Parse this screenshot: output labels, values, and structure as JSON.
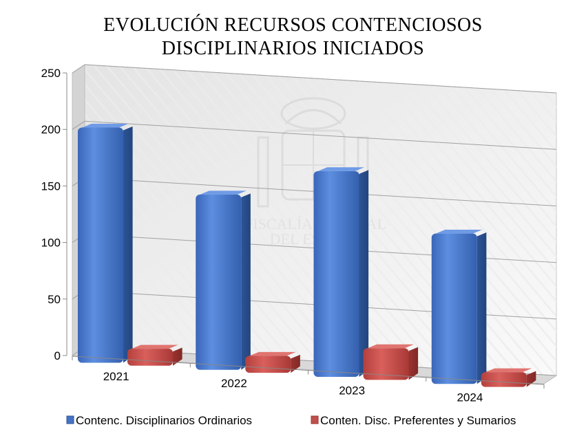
{
  "chart_data": {
    "type": "bar",
    "title_lines": [
      "EVOLUCIÓN RECURSOS CONTENCIOSOS",
      "DISCIPLINARIOS INICIADOS"
    ],
    "categories": [
      "2021",
      "2022",
      "2023",
      "2024"
    ],
    "series": [
      {
        "name": "Contenc. Disciplinarios Ordinarios",
        "values": [
          208,
          155,
          182,
          133
        ],
        "color": "#4472c4"
      },
      {
        "name": "Conten. Disc. Preferentes y Sumarios",
        "values": [
          15,
          15,
          28,
          13
        ],
        "color": "#c0504d"
      }
    ],
    "ylim": [
      0,
      250
    ],
    "yticks": [
      0,
      50,
      100,
      150,
      200,
      250
    ],
    "grid": true,
    "legend_position": "bottom",
    "watermark": [
      "FISCALÍA GENERAL",
      "DEL ESTADO"
    ]
  }
}
